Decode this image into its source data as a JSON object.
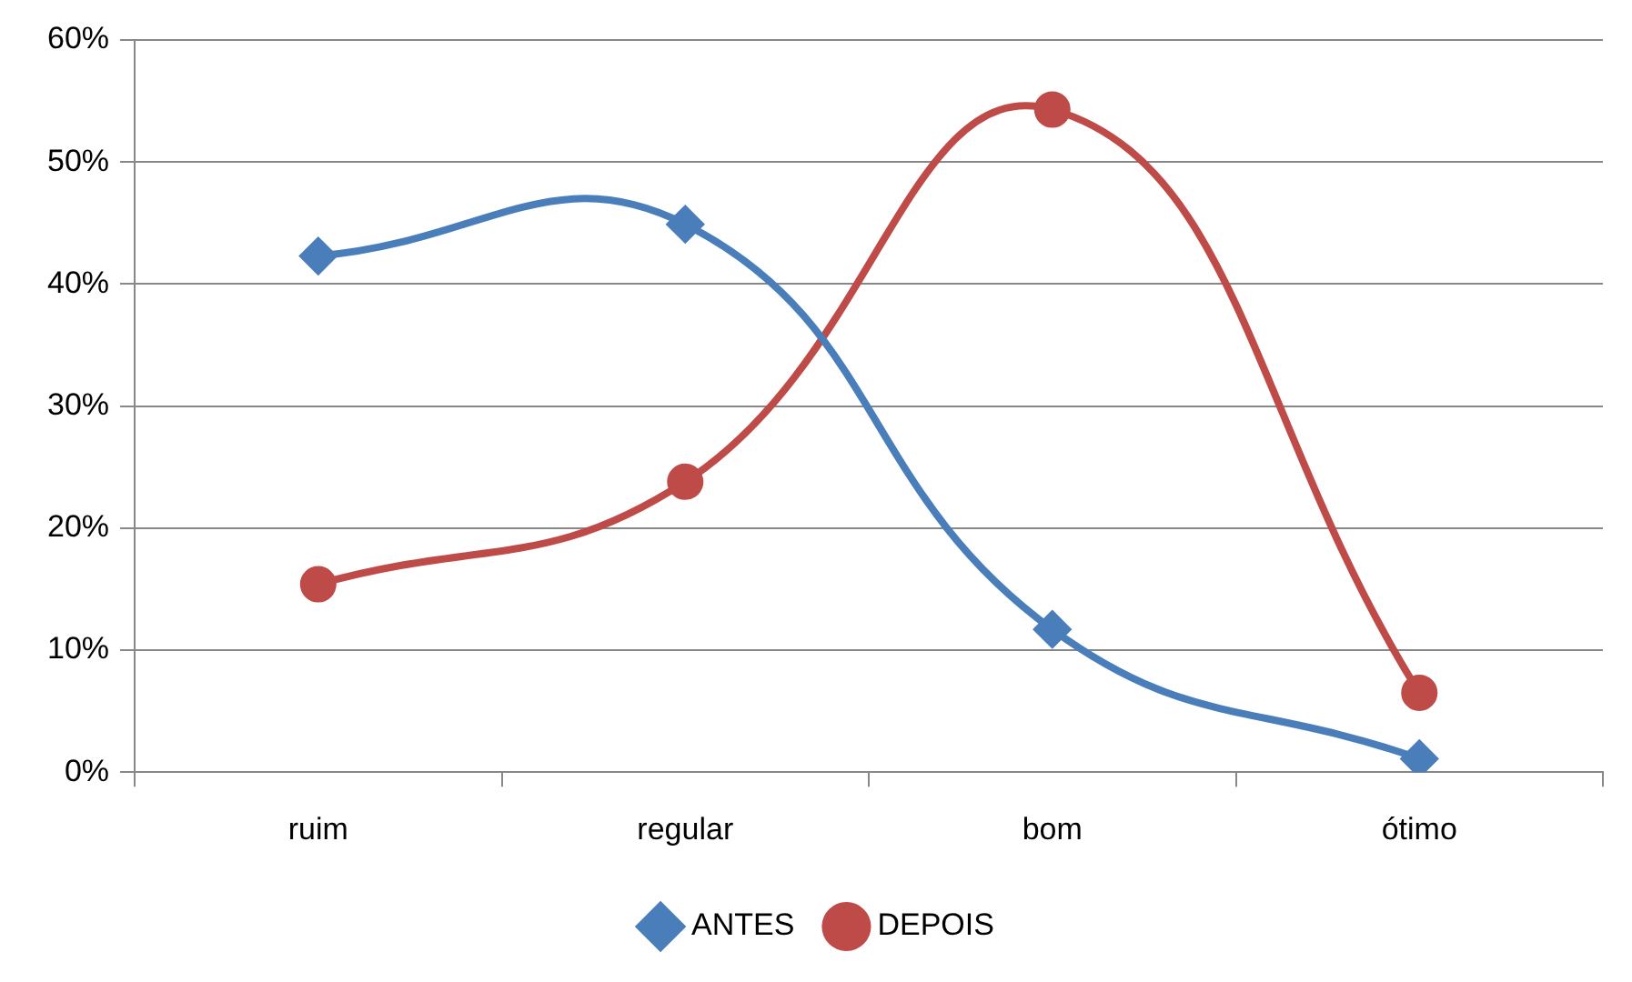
{
  "chart_data": {
    "type": "line",
    "categories": [
      "ruim",
      "regular",
      "bom",
      "ótimo"
    ],
    "series": [
      {
        "name": "ANTES",
        "color": "#4a7ebb",
        "marker": "diamond",
        "values": [
          42.3,
          44.9,
          11.7,
          1.1
        ]
      },
      {
        "name": "DEPOIS",
        "color": "#be4b48",
        "marker": "circle",
        "values": [
          15.4,
          23.8,
          54.3,
          6.5
        ]
      }
    ],
    "ylim": [
      0,
      60
    ],
    "yticks": [
      {
        "value": 0,
        "label": "0%"
      },
      {
        "value": 10,
        "label": "10%"
      },
      {
        "value": 20,
        "label": "20%"
      },
      {
        "value": 30,
        "label": "30%"
      },
      {
        "value": 40,
        "label": "40%"
      },
      {
        "value": 50,
        "label": "50%"
      },
      {
        "value": 60,
        "label": "60%"
      }
    ],
    "grid": "y",
    "legend": "bottom"
  }
}
